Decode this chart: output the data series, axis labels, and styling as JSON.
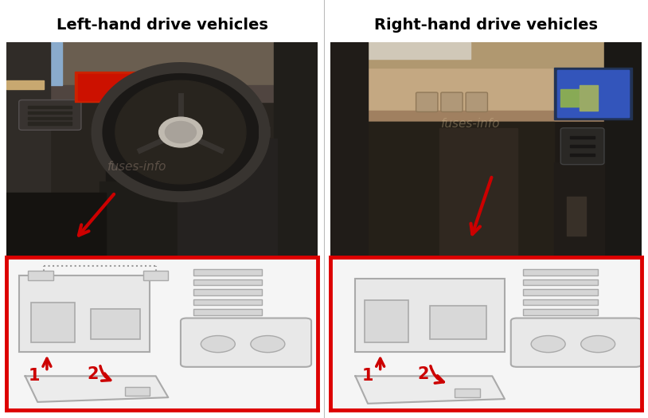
{
  "title_left": "Left-hand drive vehicles",
  "title_right": "Right-hand drive vehicles",
  "bg_color": "#ffffff",
  "title_fontsize": 14,
  "title_fontweight": "bold",
  "title_color": "#000000",
  "red_border_color": "#dd0000",
  "arrow_color": "#cc0000",
  "label_color": "#cc0000",
  "label_fontsize": 15,
  "figsize": [
    8.14,
    5.25
  ],
  "dpi": 100,
  "left_photo_bg": "#2a2825",
  "left_dash_color": "#4a4540",
  "left_floor_color": "#1a1815",
  "left_wheel_rim": "#1e1e1e",
  "left_wheel_inner": "#2a2a2a",
  "left_hub_color": "#888888",
  "left_vent_color": "#383530",
  "left_screen_color": "#cc2200",
  "left_door_color": "#302e2a",
  "right_photo_bg": "#3a3020",
  "right_dash_tan": "#c4a882",
  "right_dash_dark": "#2a2520",
  "right_nav_screen": "#3366aa",
  "right_console": "#1a1815",
  "right_door_color": "#252220",
  "diag_bg": "#f5f5f5",
  "diag_line": "#aaaaaa",
  "diag_box_fill": "#e8e8e8",
  "diag_box_inner": "#d8d8d8",
  "watermark": "fuses-info",
  "watermark_color": "#b8a090",
  "watermark_alpha": 0.35
}
